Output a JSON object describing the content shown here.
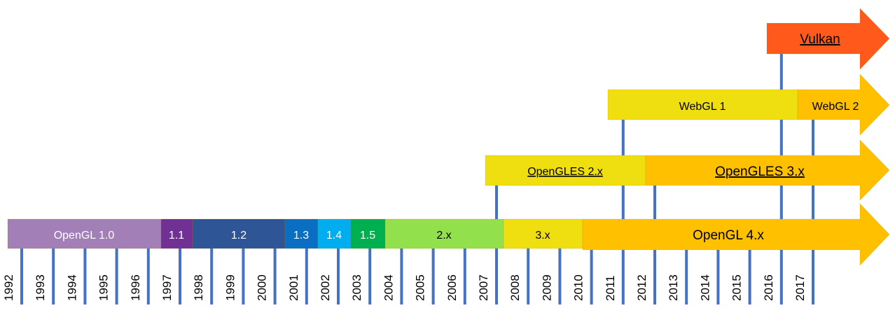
{
  "years": [
    "1992",
    "1993",
    "1994",
    "1995",
    "1996",
    "1997",
    "1998",
    "1999",
    "2000",
    "2001",
    "2002",
    "2003",
    "2004",
    "2005",
    "2006",
    "2007",
    "2008",
    "2009",
    "2010",
    "2011",
    "2012",
    "2013",
    "2014",
    "2015",
    "2016",
    "2017"
  ],
  "colors": {
    "tick": "#4472c4",
    "opengl10": "#a37fb7",
    "v11": "#703094",
    "v12": "#2e5596",
    "v13": "#0a6fc2",
    "v14": "#00aeef",
    "v15": "#00b050",
    "v2x": "#92e04b",
    "v3x": "#f0df10",
    "v4x": "#ffc000",
    "gles2": "#f0df10",
    "gles3": "#ffc000",
    "webgl1": "#f0df10",
    "webgl2": "#ffc000",
    "vulkan": "#ff5a1c"
  },
  "rows": {
    "opengl": [
      {
        "key": "opengl10",
        "label": "OpenGL 1.0",
        "start": "1992",
        "end": "1997"
      },
      {
        "key": "v11",
        "label": "1.1",
        "start": "1997",
        "end": "1998"
      },
      {
        "key": "v12",
        "label": "1.2",
        "start": "1998",
        "end": "2001"
      },
      {
        "key": "v13",
        "label": "1.3",
        "start": "2001",
        "end": "2002"
      },
      {
        "key": "v14",
        "label": "1.4",
        "start": "2002",
        "end": "2003"
      },
      {
        "key": "v15",
        "label": "1.5",
        "start": "2003",
        "end": "2004"
      },
      {
        "key": "v2x",
        "label": "2.x",
        "start": "2004",
        "end": "2008"
      },
      {
        "key": "v3x",
        "label": "3.x",
        "start": "2008",
        "end": "2010"
      },
      {
        "key": "v4x",
        "label": "OpenGL 4.x",
        "start": "2010",
        "end": null,
        "arrow": true
      }
    ],
    "gles": [
      {
        "key": "gles2",
        "label": "OpenGLES 2.x",
        "start": "2007",
        "end": "2012"
      },
      {
        "key": "gles3",
        "label": "OpenGLES 3.x",
        "start": "2012",
        "end": null,
        "arrow": true
      }
    ],
    "webgl": [
      {
        "key": "webgl1",
        "label": "WebGL 1",
        "start": "2011",
        "end": "2017"
      },
      {
        "key": "webgl2",
        "label": "WebGL 2",
        "start": "2017",
        "end": null,
        "arrow": true
      }
    ],
    "vulkan": [
      {
        "key": "vulkan",
        "label": "Vulkan",
        "start": "2016",
        "end": null,
        "arrow": true
      }
    ]
  }
}
